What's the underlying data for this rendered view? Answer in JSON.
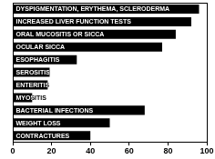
{
  "chart_data": {
    "type": "bar",
    "orientation": "horizontal",
    "categories": [
      "DYSPIGMENTATION, ERYTHEMA, SCLERODERMA",
      "INCREASED LIVER FUNCTION TESTS",
      "ORAL MUCOSITIS OR SICCA",
      "OCULAR SICCA",
      "ESOPHAGITIS",
      "SEROSITIS",
      "ENTERITIS",
      "MYOSITIS",
      "BACTERIAL INFECTIONS",
      "WEIGHT LOSS",
      "CONTRACTURES"
    ],
    "values": [
      96,
      92,
      84,
      77,
      33,
      19,
      18,
      10,
      68,
      50,
      40
    ],
    "color": "#000000",
    "xlim": [
      0,
      100
    ],
    "xticks": [
      0,
      20,
      40,
      60,
      80,
      100
    ],
    "grid": false
  }
}
